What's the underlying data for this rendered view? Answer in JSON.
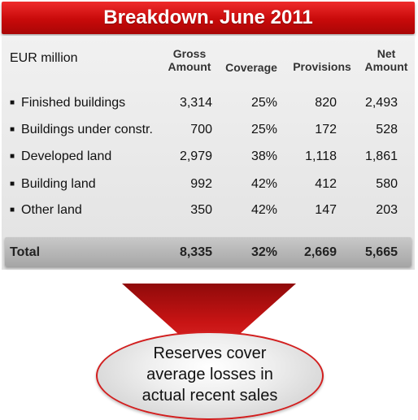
{
  "title": "Breakdown. June 2011",
  "unit_label": "EUR million",
  "columns": {
    "gross": [
      "Gross",
      "Amount"
    ],
    "coverage": "Coverage",
    "provisions": "Provisions",
    "net": [
      "Net",
      "Amount"
    ]
  },
  "rows": [
    {
      "label": "Finished buildings",
      "gross": "3,314",
      "coverage": "25%",
      "provisions": "820",
      "net": "2,493"
    },
    {
      "label": "Buildings under constr.",
      "gross": "700",
      "coverage": "25%",
      "provisions": "172",
      "net": "528"
    },
    {
      "label": "Developed land",
      "gross": "2,979",
      "coverage": "38%",
      "provisions": "1,118",
      "net": "1,861"
    },
    {
      "label": "Building land",
      "gross": "992",
      "coverage": "42%",
      "provisions": "412",
      "net": "580"
    },
    {
      "label": "Other land",
      "gross": "350",
      "coverage": "42%",
      "provisions": "147",
      "net": "203"
    }
  ],
  "total": {
    "label": "Total",
    "gross": "8,335",
    "coverage": "32%",
    "provisions": "2,669",
    "net": "5,665"
  },
  "callout": [
    "Reserves cover",
    "average losses in",
    "actual recent sales"
  ],
  "colors": {
    "accent_red": "#d21e1e",
    "total_gray": "#b5b5b5"
  }
}
